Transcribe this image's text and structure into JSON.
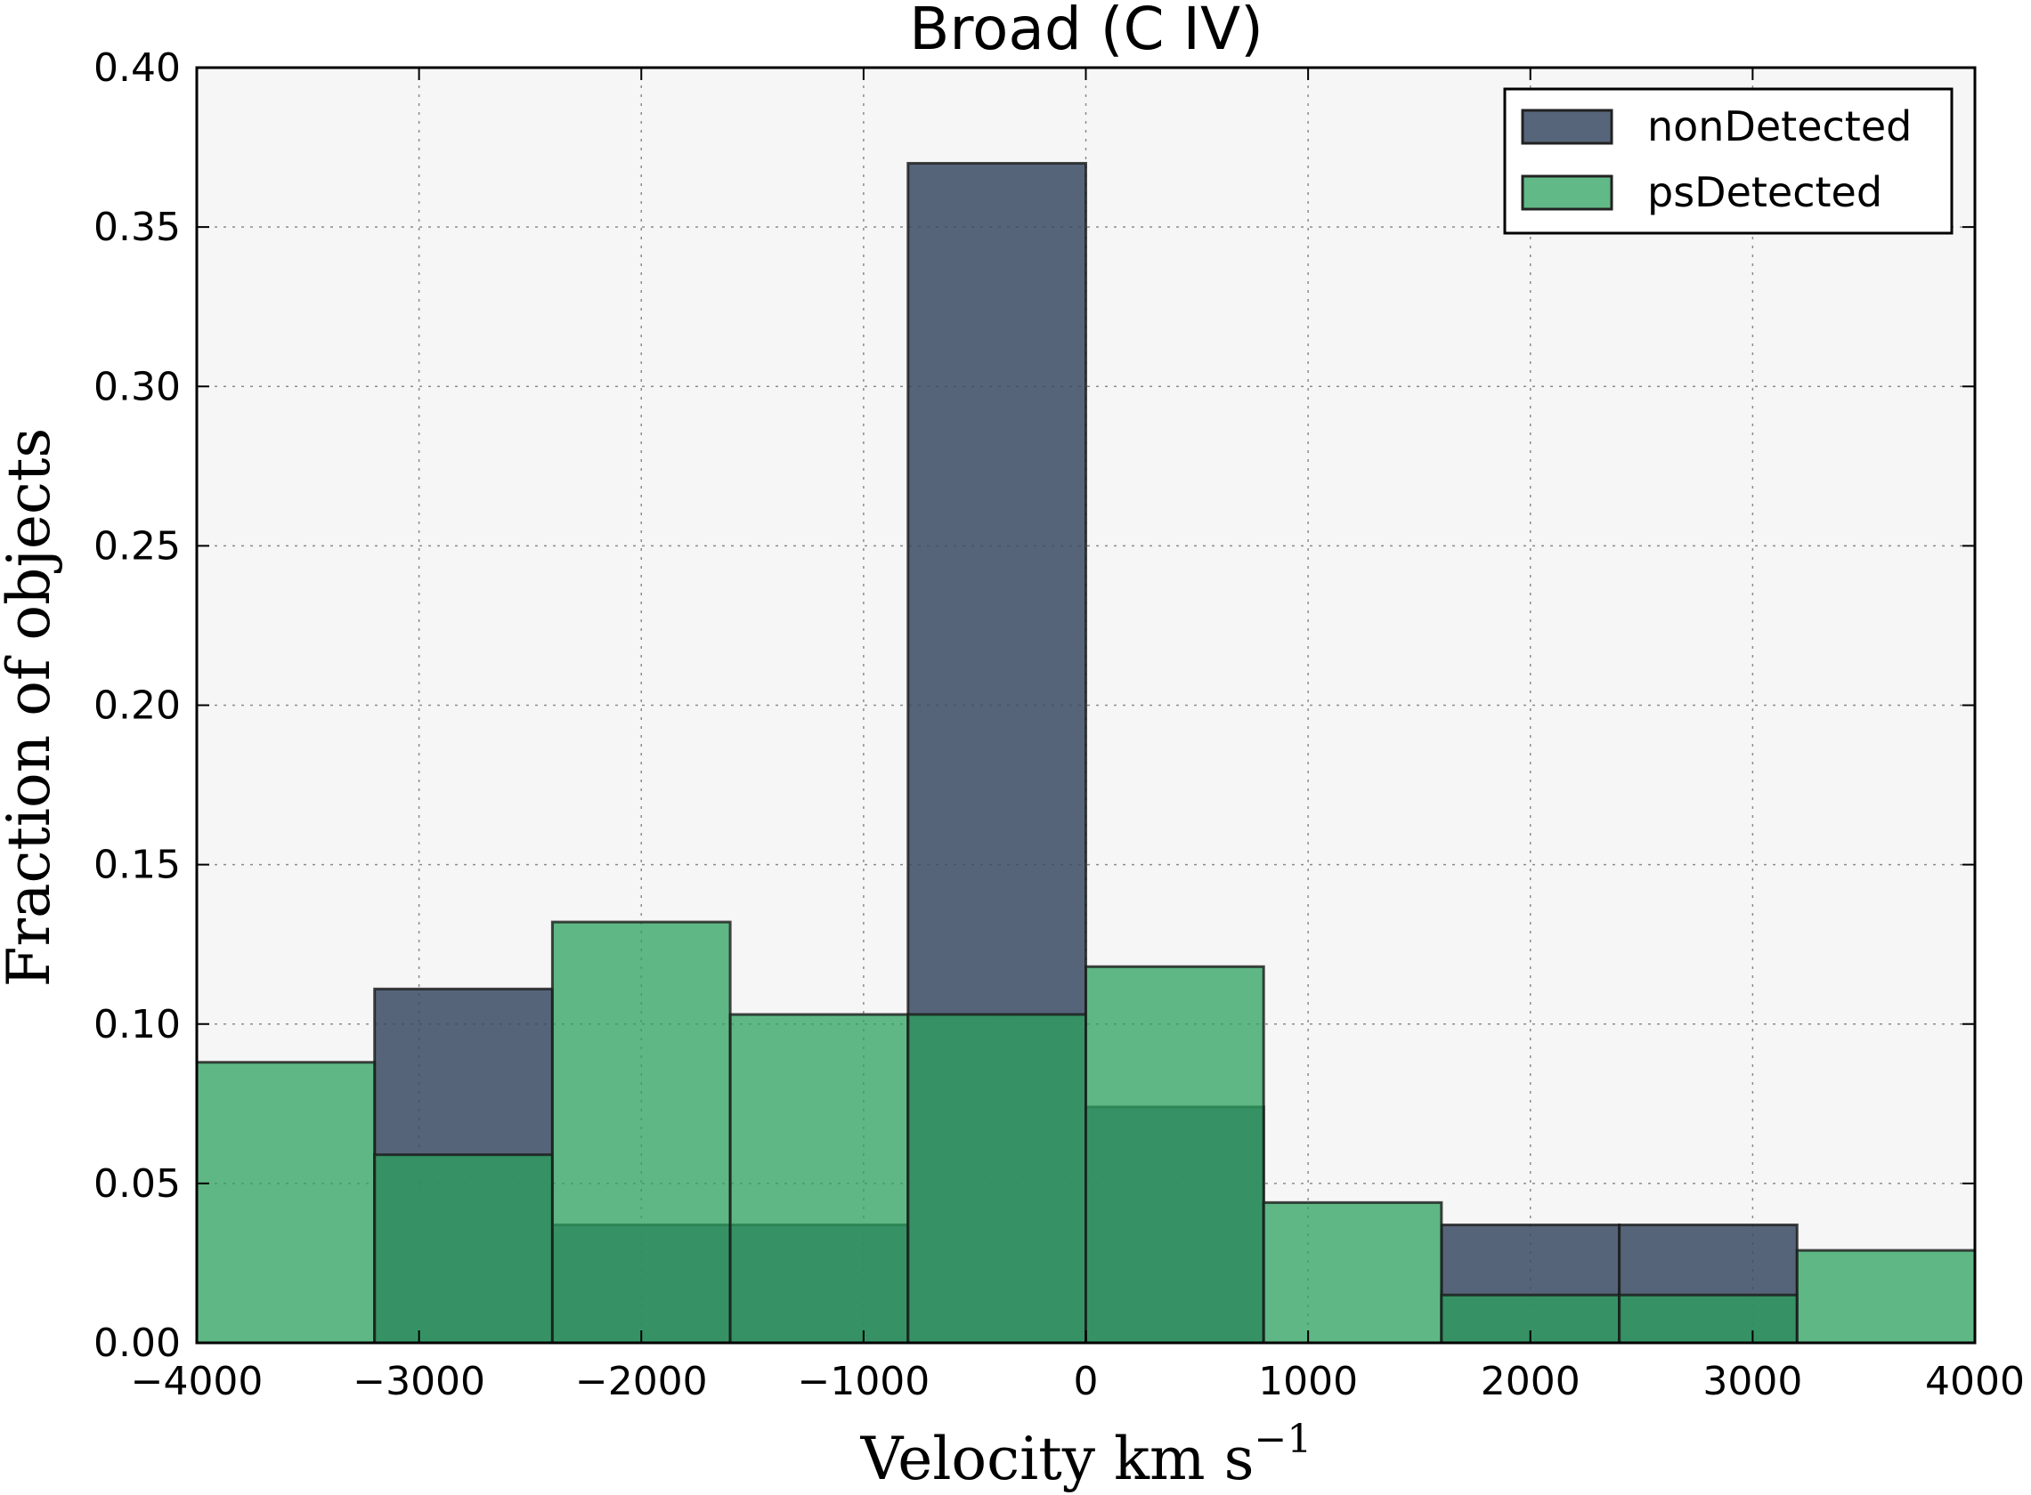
{
  "chart_data": {
    "type": "bar",
    "title": "Broad (C IV)",
    "xlabel": "Velocity km s",
    "xlabel_sup": "−1",
    "ylabel": "Fraction of objects",
    "xlim": [
      -4000,
      4000
    ],
    "ylim": [
      0,
      0.4
    ],
    "xticks": [
      -4000,
      -3000,
      -2000,
      -1000,
      0,
      1000,
      2000,
      3000,
      4000
    ],
    "xtick_labels": [
      "−4000",
      "−3000",
      "−2000",
      "−1000",
      "0",
      "1000",
      "2000",
      "3000",
      "4000"
    ],
    "yticks": [
      0,
      0.05,
      0.1,
      0.15,
      0.2,
      0.25,
      0.3,
      0.35,
      0.4
    ],
    "ytick_labels": [
      "0.00",
      "0.05",
      "0.10",
      "0.15",
      "0.20",
      "0.25",
      "0.30",
      "0.35",
      "0.40"
    ],
    "grid": true,
    "legend_position": "top-right",
    "bin_edges": [
      -4000,
      -3200,
      -2400,
      -1600,
      -800,
      0,
      800,
      1600,
      2400,
      3200,
      4000
    ],
    "series": [
      {
        "name": "nonDetected",
        "color": "#3a4a63",
        "values": [
          0,
          0.111,
          0.037,
          0.037,
          0.37,
          0.074,
          0,
          0.037,
          0.037,
          0
        ]
      },
      {
        "name": "psDetected",
        "color": "#2ca25f",
        "values": [
          0.088,
          0.059,
          0.132,
          0.103,
          0.103,
          0.118,
          0.044,
          0.015,
          0.015,
          0.029
        ]
      }
    ]
  }
}
